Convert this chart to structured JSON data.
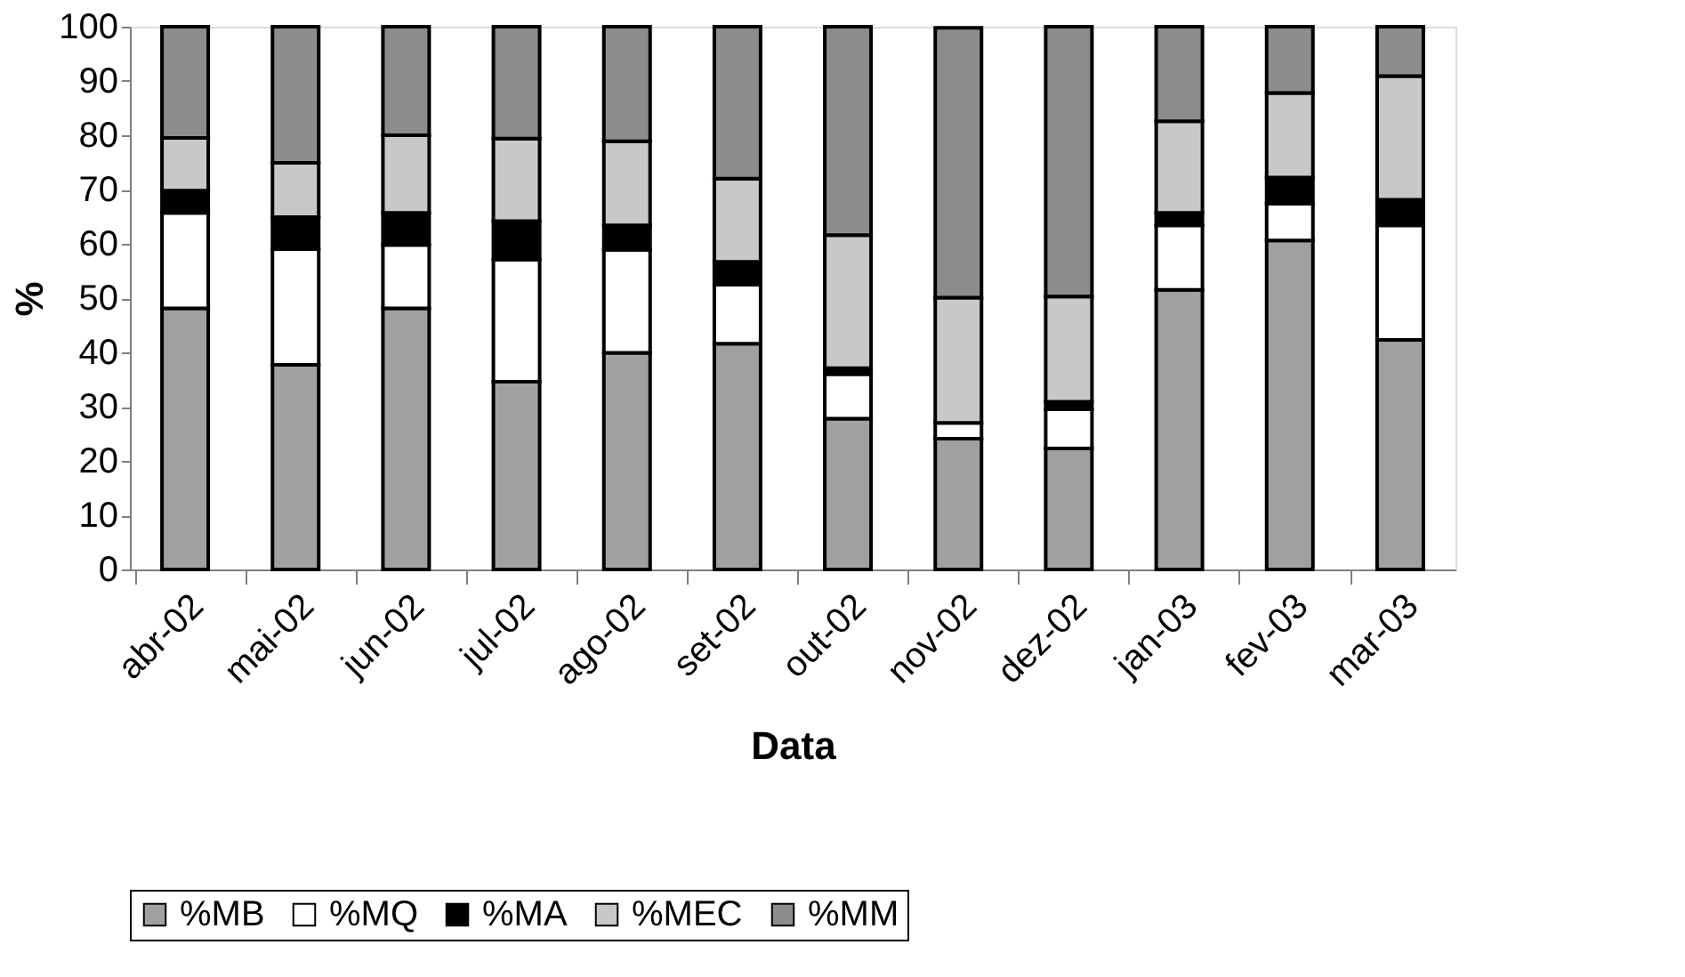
{
  "chart_data": {
    "type": "bar",
    "stacked": true,
    "xlabel": "Data",
    "ylabel": "%",
    "categories": [
      "abr-02",
      "mai-02",
      "jun-02",
      "jul-02",
      "ago-02",
      "set-02",
      "out-02",
      "nov-02",
      "dez-02",
      "jan-03",
      "fev-03",
      "mar-03"
    ],
    "series": [
      {
        "name": "%MB",
        "color": "#a0a0a0",
        "values": [
          48.1,
          37.7,
          48.1,
          34.6,
          39.9,
          41.6,
          27.8,
          24.1,
          22.3,
          51.5,
          60.6,
          42.3
        ]
      },
      {
        "name": "%MQ",
        "color": "#ffffff",
        "values": [
          17.6,
          21.3,
          11.7,
          22.5,
          19.0,
          10.9,
          8.2,
          2.9,
          7.2,
          11.9,
          6.8,
          21.1
        ]
      },
      {
        "name": "%MA",
        "color": "#000000",
        "values": [
          4.1,
          5.9,
          5.9,
          7.1,
          4.5,
          4.2,
          1.1,
          null,
          1.4,
          2.3,
          4.8,
          4.7
        ]
      },
      {
        "name": "%MEC",
        "color": "#c8c8c8",
        "values": [
          9.7,
          10.0,
          14.3,
          15.2,
          15.5,
          15.3,
          24.5,
          23.1,
          19.4,
          16.9,
          15.6,
          22.8
        ]
      },
      {
        "name": "%MM",
        "color": "#8c8c8c",
        "values": [
          20.5,
          25.1,
          20.0,
          20.6,
          21.1,
          28.0,
          38.4,
          49.7,
          49.7,
          17.4,
          12.2,
          9.1
        ]
      }
    ],
    "ylim": [
      0,
      100
    ],
    "yticks": [
      0,
      10,
      20,
      30,
      40,
      50,
      60,
      70,
      80,
      90,
      100
    ],
    "grid": false,
    "legend": "bottom"
  }
}
